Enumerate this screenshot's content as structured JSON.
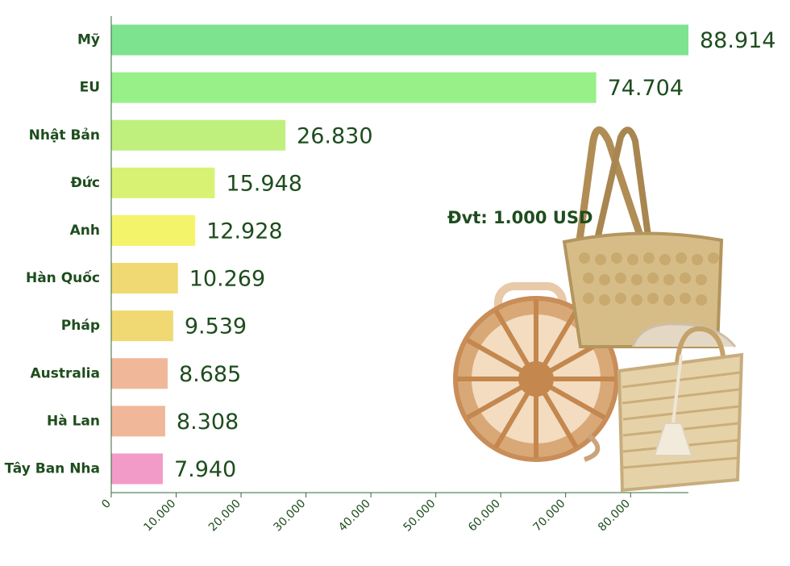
{
  "unit_note": "Đvt: 1.000 USD",
  "illustration": "woven-baskets-photo",
  "chart_data": {
    "type": "bar",
    "orientation": "horizontal",
    "title": "",
    "xlabel": "",
    "ylabel": "",
    "xlim": [
      0,
      88914
    ],
    "grid": false,
    "categories": [
      "Mỹ",
      "EU",
      "Nhật Bản",
      "Đức",
      "Anh",
      "Hàn Quốc",
      "Pháp",
      "Australia",
      "Hà Lan",
      "Tây Ban Nha"
    ],
    "values": [
      88914,
      74704,
      26830,
      15948,
      12928,
      10269,
      9539,
      8685,
      8308,
      7940
    ],
    "value_labels": [
      "88.914",
      "74.704",
      "26.830",
      "15.948",
      "12.928",
      "10.269",
      "9.539",
      "8.685",
      "8.308",
      "7.940"
    ],
    "bar_colors": [
      "#7de38f",
      "#98f088",
      "#bff07e",
      "#d8f274",
      "#f3f46a",
      "#f0d872",
      "#f0d872",
      "#f0b798",
      "#f0b798",
      "#f29bc8"
    ],
    "x_ticks": [
      0,
      10000,
      20000,
      30000,
      40000,
      50000,
      60000,
      70000,
      80000
    ],
    "x_tick_labels": [
      "0",
      "10.000",
      "20.000",
      "30.000",
      "40.000",
      "50.000",
      "60.000",
      "70.000",
      "80.000"
    ]
  }
}
